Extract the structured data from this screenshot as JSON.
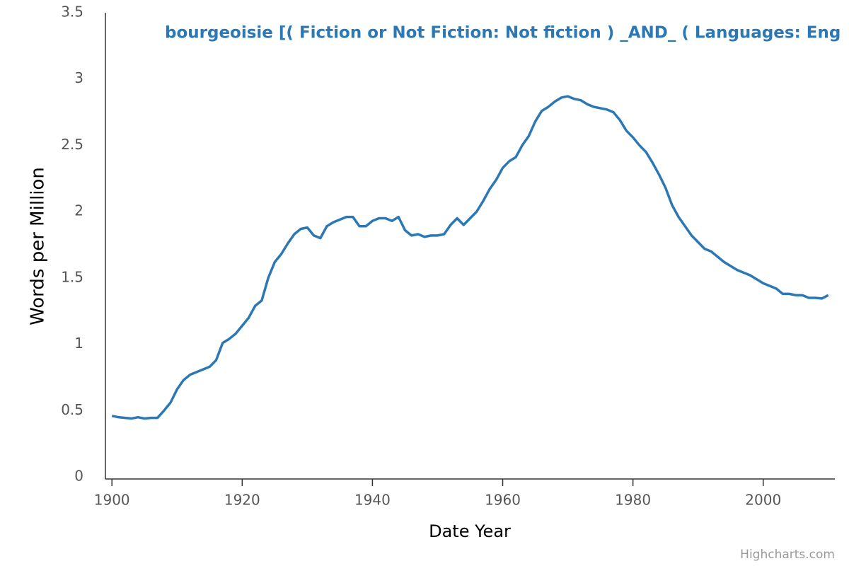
{
  "chart_data": {
    "type": "line",
    "title": "bourgeoisie [( Fiction or Not Fiction: Not fiction ) _AND_ ( Languages: Eng",
    "x_label": "Date Year",
    "y_label": "Words per Million",
    "credits": "Highcharts.com",
    "xlim": [
      1899,
      2011
    ],
    "ylim": [
      0,
      3.5
    ],
    "xticks": [
      1900,
      1920,
      1940,
      1960,
      1980,
      2000
    ],
    "yticks": [
      0,
      0.5,
      1,
      1.5,
      2,
      2.5,
      3,
      3.5
    ],
    "x": [
      1900,
      1901,
      1902,
      1903,
      1904,
      1905,
      1906,
      1907,
      1908,
      1909,
      1910,
      1911,
      1912,
      1913,
      1914,
      1915,
      1916,
      1917,
      1918,
      1919,
      1920,
      1921,
      1922,
      1923,
      1924,
      1925,
      1926,
      1927,
      1928,
      1929,
      1930,
      1931,
      1932,
      1933,
      1934,
      1935,
      1936,
      1937,
      1938,
      1939,
      1940,
      1941,
      1942,
      1943,
      1944,
      1945,
      1946,
      1947,
      1948,
      1949,
      1950,
      1951,
      1952,
      1953,
      1954,
      1955,
      1956,
      1957,
      1958,
      1959,
      1960,
      1961,
      1962,
      1963,
      1964,
      1965,
      1966,
      1967,
      1968,
      1969,
      1970,
      1971,
      1972,
      1973,
      1974,
      1975,
      1976,
      1977,
      1978,
      1979,
      1980,
      1981,
      1982,
      1983,
      1984,
      1985,
      1986,
      1987,
      1988,
      1989,
      1990,
      1991,
      1992,
      1993,
      1994,
      1995,
      1996,
      1997,
      1998,
      1999,
      2000,
      2001,
      2002,
      2003,
      2004,
      2005,
      2006,
      2007,
      2008,
      2009,
      2010
    ],
    "series": [
      {
        "name": "bourgeoisie",
        "color": "#2b78b4",
        "values": [
          0.46,
          0.45,
          0.445,
          0.44,
          0.45,
          0.44,
          0.445,
          0.445,
          0.5,
          0.56,
          0.66,
          0.73,
          0.77,
          0.79,
          0.81,
          0.83,
          0.88,
          1.01,
          1.04,
          1.08,
          1.14,
          1.2,
          1.29,
          1.33,
          1.5,
          1.62,
          1.68,
          1.76,
          1.83,
          1.87,
          1.88,
          1.82,
          1.8,
          1.89,
          1.92,
          1.94,
          1.96,
          1.96,
          1.89,
          1.89,
          1.93,
          1.95,
          1.95,
          1.93,
          1.96,
          1.86,
          1.82,
          1.83,
          1.81,
          1.82,
          1.82,
          1.83,
          1.9,
          1.95,
          1.9,
          1.95,
          2.0,
          2.08,
          2.17,
          2.24,
          2.33,
          2.38,
          2.41,
          2.5,
          2.57,
          2.68,
          2.76,
          2.79,
          2.83,
          2.86,
          2.87,
          2.85,
          2.84,
          2.81,
          2.79,
          2.78,
          2.77,
          2.75,
          2.69,
          2.61,
          2.56,
          2.5,
          2.45,
          2.37,
          2.28,
          2.18,
          2.05,
          1.96,
          1.89,
          1.82,
          1.77,
          1.72,
          1.7,
          1.66,
          1.62,
          1.59,
          1.56,
          1.54,
          1.52,
          1.49,
          1.46,
          1.44,
          1.42,
          1.38,
          1.38,
          1.37,
          1.37,
          1.35,
          1.35,
          1.345,
          1.37
        ]
      }
    ]
  }
}
